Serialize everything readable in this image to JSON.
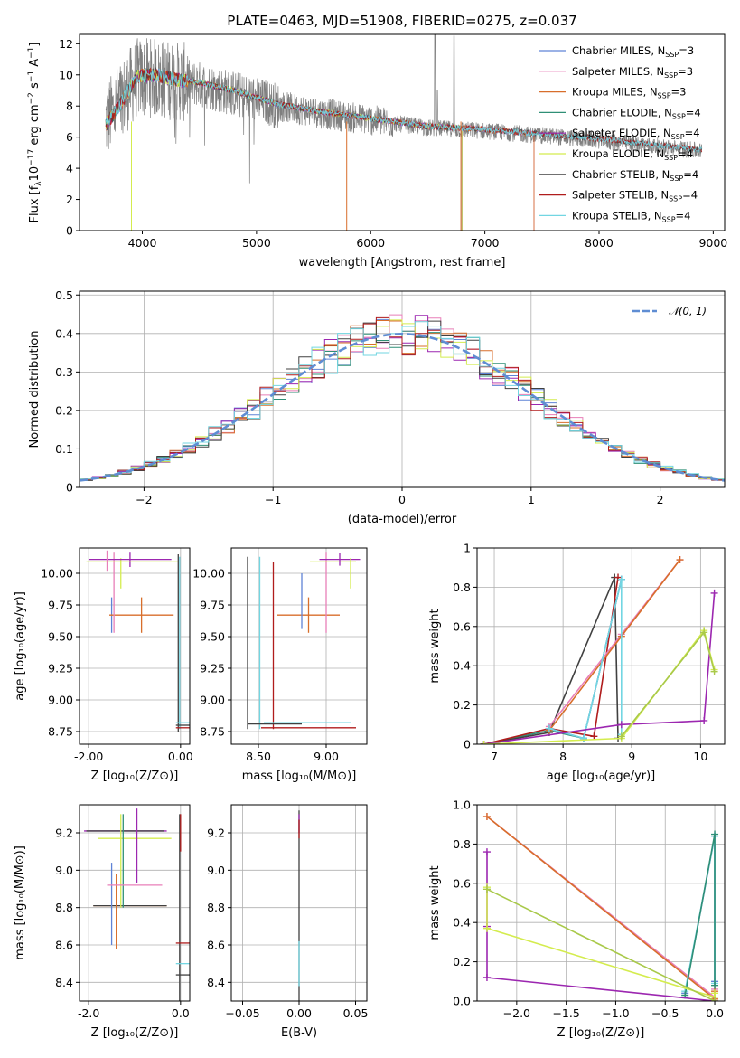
{
  "figure_title": "PLATE=0463, MJD=51908, FIBERID=0275, z=0.037",
  "chart_data": [
    {
      "id": "spectrum",
      "type": "line",
      "xlabel": "wavelength [Angstrom, rest frame]",
      "ylabel": "Flux [f_λ 10^-17 erg cm^-2 s^-1 A^-1]",
      "xlim": [
        3450,
        9100
      ],
      "ylim": [
        0,
        12.6
      ],
      "xticks": [
        4000,
        5000,
        6000,
        7000,
        8000,
        9000
      ],
      "yticks": [
        0,
        2,
        4,
        6,
        8,
        10,
        12
      ],
      "grid": false,
      "legend_position": "top-right",
      "data_color": "#7f7f7f",
      "data_knots": [
        [
          3680,
          7.0
        ],
        [
          3800,
          8.2
        ],
        [
          3950,
          9.8
        ],
        [
          4100,
          9.8
        ],
        [
          4300,
          9.6
        ],
        [
          4500,
          9.4
        ],
        [
          4800,
          8.8
        ],
        [
          5200,
          8.0
        ],
        [
          5600,
          7.5
        ],
        [
          6000,
          7.1
        ],
        [
          6500,
          6.6
        ],
        [
          7000,
          6.4
        ],
        [
          7500,
          6.1
        ],
        [
          8000,
          5.8
        ],
        [
          8500,
          5.4
        ],
        [
          8900,
          5.1
        ]
      ],
      "model_knots": [
        [
          3680,
          6.8
        ],
        [
          3800,
          8.0
        ],
        [
          3950,
          9.9
        ],
        [
          4100,
          10.0
        ],
        [
          4300,
          9.7
        ],
        [
          4500,
          9.5
        ],
        [
          4800,
          9.0
        ],
        [
          5200,
          8.1
        ],
        [
          5600,
          7.6
        ],
        [
          6000,
          7.2
        ],
        [
          6500,
          6.7
        ],
        [
          7000,
          6.5
        ],
        [
          7500,
          6.2
        ],
        [
          8000,
          5.9
        ],
        [
          8500,
          5.5
        ],
        [
          8900,
          5.2
        ]
      ],
      "series": [
        {
          "name": "Chabrier MILES, N_SSP=3",
          "color": "#5f83d6",
          "end": 7430
        },
        {
          "name": "Salpeter MILES, N_SSP=3",
          "color": "#e87fb8",
          "end": 7430
        },
        {
          "name": "Kroupa MILES, N_SSP=3",
          "color": "#d86e2b",
          "end": 7430
        },
        {
          "name": "Chabrier ELODIE, N_SSP=4",
          "color": "#2f8f76",
          "end": 6800
        },
        {
          "name": "Salpeter ELODIE, N_SSP=4",
          "color": "#9c27b0",
          "end": 6800
        },
        {
          "name": "Kroupa ELODIE, N_SSP=4",
          "color": "#d4ec4e",
          "end": 6800
        },
        {
          "name": "Chabrier STELIB, N_SSP=4",
          "color": "#404040",
          "end": 8900
        },
        {
          "name": "Salpeter STELIB, N_SSP=4",
          "color": "#b01c1c",
          "end": 8900
        },
        {
          "name": "Kroupa STELIB, N_SSP=4",
          "color": "#72d6e2",
          "end": 8900
        }
      ]
    },
    {
      "id": "residuals",
      "type": "bar",
      "xlabel": "(data-model)/error",
      "ylabel": "Normed distribution",
      "xlim": [
        -2.5,
        2.5
      ],
      "ylim": [
        0,
        0.51
      ],
      "xticks": [
        -2,
        -1,
        0,
        1,
        2
      ],
      "yticks": [
        0.0,
        0.1,
        0.2,
        0.3,
        0.4,
        0.5
      ],
      "grid": true,
      "bin_width": 0.1,
      "reference": {
        "name": "𝒩(0, 1)",
        "color": "#5f8dd3"
      },
      "legend_position": "top-right"
    },
    {
      "id": "age-vs-Z",
      "type": "scatter",
      "xlabel": "Z [log10(Z/Z⊙)]",
      "ylabel": "age  [log10(age/yr)]",
      "xlim": [
        -2.2,
        0.2
      ],
      "ylim": [
        8.65,
        10.2
      ],
      "xticks": [
        -2,
        0
      ],
      "yticks": [
        8.75,
        9.0,
        9.25,
        9.5,
        9.75,
        10.0
      ],
      "grid": true,
      "points": [
        {
          "x": -1.5,
          "y": 9.67,
          "xerr": 0.0,
          "yerr": 0.14,
          "color": "#5f83d6"
        },
        {
          "x": -0.85,
          "y": 9.67,
          "xerr": 0.7,
          "yerr": 0.14,
          "color": "#d86e2b"
        },
        {
          "x": -1.45,
          "y": 9.85,
          "xerr": 0.0,
          "yerr": 0.32,
          "color": "#e87fb8"
        },
        {
          "x": -1.3,
          "y": 10.0,
          "xerr": 0.0,
          "yerr": 0.12,
          "color": "#d4ec4e"
        },
        {
          "x": -1.1,
          "y": 10.11,
          "xerr": 0.9,
          "yerr": 0.06,
          "color": "#9c27b0"
        },
        {
          "x": -1.05,
          "y": 10.09,
          "xerr": 1.0,
          "yerr": 0.0,
          "color": "#d4ec4e"
        },
        {
          "x": -1.6,
          "y": 10.1,
          "xerr": 0.0,
          "yerr": 0.08,
          "color": "#e87fb8"
        },
        {
          "x": -0.05,
          "y": 9.45,
          "xerr": 0.0,
          "yerr": 0.7,
          "color": "#404040"
        },
        {
          "x": -0.02,
          "y": 9.45,
          "xerr": 0.0,
          "yerr": 0.68,
          "color": "#72d6e2"
        },
        {
          "x": 0.05,
          "y": 8.82,
          "xerr": 0.15,
          "yerr": 0.0,
          "color": "#72d6e2"
        },
        {
          "x": 0.05,
          "y": 8.78,
          "xerr": 0.15,
          "yerr": 0.0,
          "color": "#b01c1c"
        },
        {
          "x": 0.05,
          "y": 8.8,
          "xerr": 0.15,
          "yerr": 0.0,
          "color": "#404040"
        }
      ]
    },
    {
      "id": "age-vs-mass",
      "type": "scatter",
      "xlabel": "mass [log10(M/M⊙)]",
      "ylabel": "",
      "xlim": [
        8.3,
        9.3
      ],
      "ylim": [
        8.65,
        10.2
      ],
      "xticks": [
        8.5,
        9.0
      ],
      "yticks": [
        8.75,
        9.0,
        9.25,
        9.5,
        9.75,
        10.0
      ],
      "grid": true,
      "points": [
        {
          "x": 8.42,
          "y": 9.45,
          "xerr": 0.0,
          "yerr": 0.68,
          "color": "#404040"
        },
        {
          "x": 8.51,
          "y": 9.45,
          "xerr": 0.0,
          "yerr": 0.68,
          "color": "#72d6e2"
        },
        {
          "x": 8.61,
          "y": 9.43,
          "xerr": 0.0,
          "yerr": 0.66,
          "color": "#b01c1c"
        },
        {
          "x": 8.62,
          "y": 8.81,
          "xerr": 0.2,
          "yerr": 0.0,
          "color": "#404040"
        },
        {
          "x": 8.87,
          "y": 8.78,
          "xerr": 0.35,
          "yerr": 0.0,
          "color": "#b01c1c"
        },
        {
          "x": 8.86,
          "y": 8.82,
          "xerr": 0.32,
          "yerr": 0.0,
          "color": "#72d6e2"
        },
        {
          "x": 8.87,
          "y": 9.67,
          "xerr": 0.23,
          "yerr": 0.14,
          "color": "#d86e2b"
        },
        {
          "x": 8.82,
          "y": 9.78,
          "xerr": 0.0,
          "yerr": 0.22,
          "color": "#5f83d6"
        },
        {
          "x": 9.0,
          "y": 9.85,
          "xerr": 0.0,
          "yerr": 0.32,
          "color": "#e87fb8"
        },
        {
          "x": 9.05,
          "y": 10.09,
          "xerr": 0.17,
          "yerr": 0.0,
          "color": "#d4ec4e"
        },
        {
          "x": 9.1,
          "y": 10.11,
          "xerr": 0.15,
          "yerr": 0.05,
          "color": "#9c27b0"
        },
        {
          "x": 9.18,
          "y": 10.0,
          "xerr": 0.0,
          "yerr": 0.12,
          "color": "#d4ec4e"
        }
      ]
    },
    {
      "id": "weight-vs-age",
      "type": "line",
      "xlabel": "age  [log10(age/yr)]",
      "ylabel": "mass weight",
      "xlim": [
        6.75,
        10.35
      ],
      "ylim": [
        0,
        1.0
      ],
      "xticks": [
        7,
        8,
        9,
        10
      ],
      "yticks": [
        0.0,
        0.2,
        0.4,
        0.6,
        0.8,
        1.0
      ],
      "grid": true,
      "series": [
        {
          "color": "#2f8f76",
          "x": [
            6.85,
            7.8,
            8.3,
            8.85
          ],
          "y": [
            0.0,
            0.07,
            0.03,
            0.84
          ]
        },
        {
          "color": "#404040",
          "x": [
            6.85,
            7.8,
            8.75,
            8.8
          ],
          "y": [
            0.0,
            0.06,
            0.85,
            0.03
          ]
        },
        {
          "color": "#b01c1c",
          "x": [
            6.85,
            7.8,
            8.45,
            8.8
          ],
          "y": [
            0.0,
            0.08,
            0.04,
            0.85
          ]
        },
        {
          "color": "#e87fb8",
          "x": [
            7.8,
            8.85,
            9.7
          ],
          "y": [
            0.09,
            0.56,
            0.94
          ]
        },
        {
          "color": "#d86e2b",
          "x": [
            7.8,
            8.85,
            9.7
          ],
          "y": [
            0.07,
            0.55,
            0.94
          ]
        },
        {
          "color": "#5f83d6",
          "x": [
            7.8,
            8.3,
            8.85
          ],
          "y": [
            0.08,
            0.03,
            0.84
          ]
        },
        {
          "color": "#72d6e2",
          "x": [
            7.8,
            8.3,
            8.85,
            8.85
          ],
          "y": [
            0.08,
            0.03,
            0.84,
            0.05
          ]
        },
        {
          "color": "#9c27b0",
          "x": [
            6.85,
            8.85,
            10.05,
            10.2
          ],
          "y": [
            0.0,
            0.1,
            0.12,
            0.77
          ]
        },
        {
          "color": "#d4ec4e",
          "x": [
            6.85,
            8.85,
            10.05,
            10.2
          ],
          "y": [
            0.0,
            0.03,
            0.58,
            0.38
          ]
        },
        {
          "color": "#a9c94a",
          "x": [
            8.85,
            10.05,
            10.2
          ],
          "y": [
            0.04,
            0.57,
            0.37
          ]
        }
      ]
    },
    {
      "id": "mass-vs-Z",
      "type": "scatter",
      "xlabel": "Z [log10(Z/Z⊙)]",
      "ylabel": "mass [log10(M/M⊙)]",
      "xlim": [
        -2.2,
        0.2
      ],
      "ylim": [
        8.3,
        9.35
      ],
      "xticks": [
        -2,
        0
      ],
      "yticks": [
        8.4,
        8.6,
        8.8,
        9.0,
        9.2
      ],
      "grid": true,
      "points": [
        {
          "x": -1.2,
          "y": 9.21,
          "xerr": 0.9,
          "yerr": 0.0,
          "color": "#9c27b0"
        },
        {
          "x": -1.2,
          "y": 9.21,
          "xerr": 0.85,
          "yerr": 0.0,
          "color": "#404040"
        },
        {
          "x": -1.0,
          "y": 9.17,
          "xerr": 0.8,
          "yerr": 0.0,
          "color": "#d4ec4e"
        },
        {
          "x": -1.1,
          "y": 8.81,
          "xerr": 0.8,
          "yerr": 0.0,
          "color": "#d86e2b"
        },
        {
          "x": -1.1,
          "y": 8.81,
          "xerr": 0.8,
          "yerr": 0.0,
          "color": "#404040"
        },
        {
          "x": -1.5,
          "y": 8.82,
          "xerr": 0.0,
          "yerr": 0.22,
          "color": "#5f83d6"
        },
        {
          "x": -1.4,
          "y": 8.78,
          "xerr": 0.0,
          "yerr": 0.2,
          "color": "#d86e2b"
        },
        {
          "x": -1.3,
          "y": 9.05,
          "xerr": 0.0,
          "yerr": 0.25,
          "color": "#d4ec4e"
        },
        {
          "x": -1.25,
          "y": 9.05,
          "xerr": 0.0,
          "yerr": 0.25,
          "color": "#2f8f76"
        },
        {
          "x": -1.0,
          "y": 8.92,
          "xerr": 0.6,
          "yerr": 0.0,
          "color": "#e87fb8"
        },
        {
          "x": -0.95,
          "y": 9.13,
          "xerr": 0.0,
          "yerr": 0.2,
          "color": "#9c27b0"
        },
        {
          "x": -0.02,
          "y": 8.8,
          "xerr": 0.0,
          "yerr": 0.5,
          "color": "#404040"
        },
        {
          "x": 0.0,
          "y": 9.2,
          "xerr": 0.0,
          "yerr": 0.1,
          "color": "#b01c1c"
        },
        {
          "x": 0.05,
          "y": 8.61,
          "xerr": 0.15,
          "yerr": 0.0,
          "color": "#b01c1c"
        },
        {
          "x": 0.05,
          "y": 8.5,
          "xerr": 0.15,
          "yerr": 0.0,
          "color": "#72d6e2"
        },
        {
          "x": 0.05,
          "y": 8.44,
          "xerr": 0.15,
          "yerr": 0.0,
          "color": "#404040"
        }
      ]
    },
    {
      "id": "mass-vs-EBV",
      "type": "scatter",
      "xlabel": "E(B-V)",
      "ylabel": "",
      "xlim": [
        -0.06,
        0.06
      ],
      "ylim": [
        8.3,
        9.35
      ],
      "xticks": [
        -0.05,
        0.0,
        0.05
      ],
      "yticks": [
        8.4,
        8.6,
        8.8,
        9.0,
        9.2
      ],
      "grid": true,
      "points": [
        {
          "x": 0.0,
          "y": 8.8,
          "xerr": 0.0,
          "yerr": 0.52,
          "color": "#404040"
        },
        {
          "x": 0.0,
          "y": 9.25,
          "xerr": 0.0,
          "yerr": 0.05,
          "color": "#9c27b0"
        },
        {
          "x": 0.0,
          "y": 9.22,
          "xerr": 0.0,
          "yerr": 0.05,
          "color": "#b01c1c"
        },
        {
          "x": 0.0,
          "y": 8.5,
          "xerr": 0.0,
          "yerr": 0.12,
          "color": "#72d6e2"
        }
      ]
    },
    {
      "id": "weight-vs-Z",
      "type": "line",
      "xlabel": "Z [log10(Z/Z⊙)]",
      "ylabel": "mass weight",
      "xlim": [
        -2.4,
        0.1
      ],
      "ylim": [
        0,
        1.0
      ],
      "xticks": [
        -2.0,
        -1.5,
        -1.0,
        -0.5,
        0.0
      ],
      "yticks": [
        0.0,
        0.2,
        0.4,
        0.6,
        0.8,
        1.0
      ],
      "grid": true,
      "series": [
        {
          "color": "#e87fb8",
          "x": [
            -2.3,
            0.0,
            0.0
          ],
          "y": [
            0.94,
            0.02,
            0.06
          ]
        },
        {
          "color": "#d86e2b",
          "x": [
            -2.3,
            0.0,
            0.0
          ],
          "y": [
            0.94,
            0.01,
            0.05
          ]
        },
        {
          "color": "#5f83d6",
          "x": [
            -0.3,
            0.0,
            0.0
          ],
          "y": [
            0.04,
            0.84,
            0.1
          ]
        },
        {
          "color": "#72d6e2",
          "x": [
            -0.3,
            0.0,
            0.0
          ],
          "y": [
            0.05,
            0.84,
            0.09
          ]
        },
        {
          "color": "#2f8f76",
          "x": [
            -0.3,
            0.0,
            0.0
          ],
          "y": [
            0.03,
            0.85,
            0.08
          ]
        },
        {
          "color": "#9c27b0",
          "x": [
            -2.3,
            -2.3,
            -2.3,
            0.0
          ],
          "y": [
            0.76,
            0.38,
            0.12,
            0.0
          ]
        },
        {
          "color": "#d4ec4e",
          "x": [
            -2.3,
            -2.3,
            0.0,
            0.0
          ],
          "y": [
            0.58,
            0.37,
            0.02,
            0.04
          ]
        },
        {
          "color": "#a9c94a",
          "x": [
            -2.3,
            0.0
          ],
          "y": [
            0.57,
            0.0
          ]
        }
      ]
    }
  ]
}
